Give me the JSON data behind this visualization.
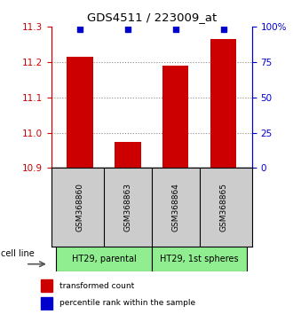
{
  "title": "GDS4511 / 223009_at",
  "samples": [
    "GSM368860",
    "GSM368863",
    "GSM368864",
    "GSM368865"
  ],
  "red_values": [
    11.215,
    10.975,
    11.19,
    11.265
  ],
  "blue_values": [
    11.293,
    11.293,
    11.293,
    11.293
  ],
  "ymin": 10.9,
  "ymax": 11.3,
  "yticks_left": [
    10.9,
    11.0,
    11.1,
    11.2,
    11.3
  ],
  "yticks_right": [
    0,
    25,
    50,
    75,
    100
  ],
  "yticks_right_labels": [
    "0",
    "25",
    "50",
    "75",
    "100%"
  ],
  "group_configs": [
    {
      "indices": [
        0,
        1
      ],
      "label": "HT29, parental",
      "color": "#90EE90"
    },
    {
      "indices": [
        2,
        3
      ],
      "label": "HT29, 1st spheres",
      "color": "#90EE90"
    }
  ],
  "cell_line_label": "cell line",
  "legend_items": [
    {
      "color": "#CC0000",
      "label": "transformed count"
    },
    {
      "color": "#0000CC",
      "label": "percentile rank within the sample"
    }
  ],
  "bar_color": "#CC0000",
  "dot_color": "#0000CC",
  "bar_width": 0.55,
  "background_color": "#ffffff",
  "plot_bg_color": "#ffffff",
  "grid_color": "#888888",
  "sample_box_color": "#cccccc",
  "left_axis_color": "#CC0000",
  "right_axis_color": "#0000CC"
}
